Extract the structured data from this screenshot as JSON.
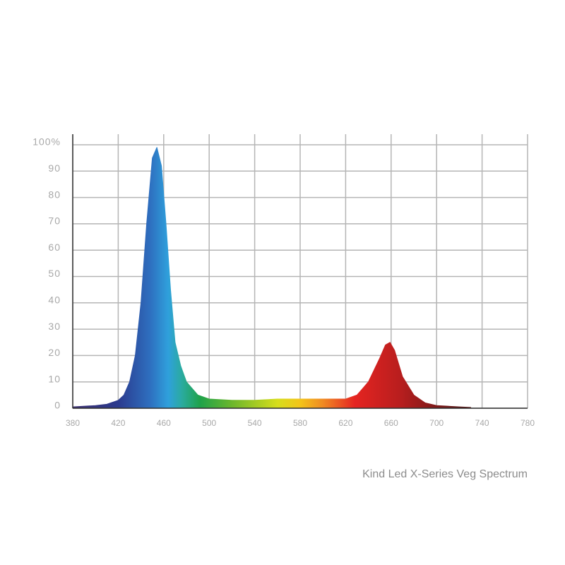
{
  "chart_data": {
    "type": "area",
    "annotation": "Kind Led X-Series Veg Spectrum",
    "x": [
      380,
      400,
      410,
      420,
      425,
      430,
      435,
      440,
      445,
      450,
      454,
      458,
      462,
      466,
      470,
      475,
      480,
      490,
      500,
      520,
      540,
      560,
      580,
      600,
      620,
      630,
      640,
      650,
      655,
      659,
      663,
      670,
      680,
      690,
      700,
      720,
      730
    ],
    "values": [
      0.5,
      1,
      1.5,
      3,
      5,
      10,
      20,
      40,
      70,
      95,
      99,
      92,
      70,
      45,
      25,
      16,
      10,
      5,
      3.5,
      3,
      3,
      3.5,
      3.5,
      3.5,
      3.5,
      5,
      10,
      19,
      24,
      25,
      22,
      12,
      5,
      2,
      1,
      0.5,
      0.3
    ],
    "xlim": [
      380,
      780
    ],
    "ylim": [
      0,
      100
    ],
    "xticks": [
      380,
      420,
      460,
      500,
      540,
      580,
      620,
      660,
      700,
      740,
      780
    ],
    "yticks": [
      0,
      10,
      20,
      30,
      40,
      50,
      60,
      70,
      80,
      90,
      {
        "value": 100,
        "label": "100%"
      }
    ],
    "grid": true
  }
}
